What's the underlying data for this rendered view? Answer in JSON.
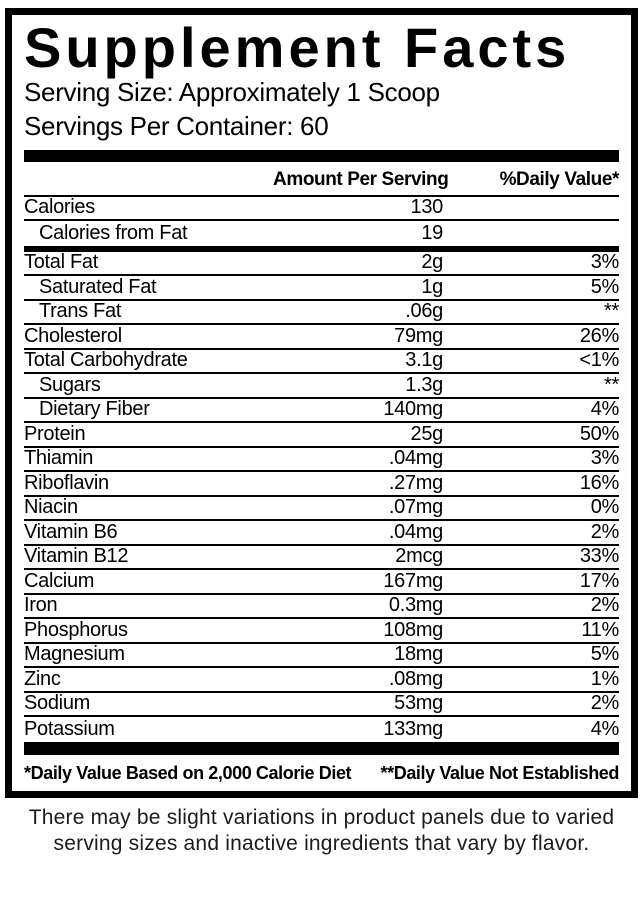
{
  "panel": {
    "title": "Supplement Facts",
    "serving_size": "Serving Size: Approximately 1 Scoop",
    "servings_per_container": "Servings Per Container: 60",
    "columns": {
      "amount": "Amount Per Serving",
      "daily_value": "%Daily Value*"
    },
    "rows": [
      {
        "name": "Calories",
        "amount": "130",
        "dv": ""
      },
      {
        "name": "Calories from Fat",
        "amount": "19",
        "dv": ""
      },
      {
        "name": "Total Fat",
        "amount": "2g",
        "dv": "3%"
      },
      {
        "name": "Saturated Fat",
        "amount": "1g",
        "dv": "5%"
      },
      {
        "name": "Trans Fat",
        "amount": ".06g",
        "dv": "**"
      },
      {
        "name": "Cholesterol",
        "amount": "79mg",
        "dv": "26%"
      },
      {
        "name": "Total Carbohydrate",
        "amount": "3.1g",
        "dv": "<1%"
      },
      {
        "name": "Sugars",
        "amount": "1.3g",
        "dv": "**"
      },
      {
        "name": "Dietary Fiber",
        "amount": "140mg",
        "dv": "4%"
      },
      {
        "name": "Protein",
        "amount": "25g",
        "dv": "50%"
      },
      {
        "name": "Thiamin",
        "amount": ".04mg",
        "dv": "3%"
      },
      {
        "name": "Riboflavin",
        "amount": ".27mg",
        "dv": "16%"
      },
      {
        "name": "Niacin",
        "amount": ".07mg",
        "dv": "0%"
      },
      {
        "name": "Vitamin B6",
        "amount": ".04mg",
        "dv": "2%"
      },
      {
        "name": "Vitamin B12",
        "amount": "2mcg",
        "dv": "33%"
      },
      {
        "name": "Calcium",
        "amount": "167mg",
        "dv": "17%"
      },
      {
        "name": "Iron",
        "amount": "0.3mg",
        "dv": "2%"
      },
      {
        "name": "Phosphorus",
        "amount": "108mg",
        "dv": "11%"
      },
      {
        "name": "Magnesium",
        "amount": "18mg",
        "dv": "5%"
      },
      {
        "name": "Zinc",
        "amount": ".08mg",
        "dv": "1%"
      },
      {
        "name": "Sodium",
        "amount": "53mg",
        "dv": "2%"
      },
      {
        "name": "Potassium",
        "amount": "133mg",
        "dv": "4%"
      }
    ],
    "footnotes": {
      "left": "*Daily Value Based on 2,000 Calorie Diet",
      "right": "**Daily Value Not Established"
    }
  },
  "disclaimer": {
    "line1": "There may be slight variations in product panels due to varied",
    "line2": "serving sizes and inactive ingredients that vary by flavor."
  },
  "colors": {
    "text": "#000000",
    "background": "#ffffff"
  }
}
